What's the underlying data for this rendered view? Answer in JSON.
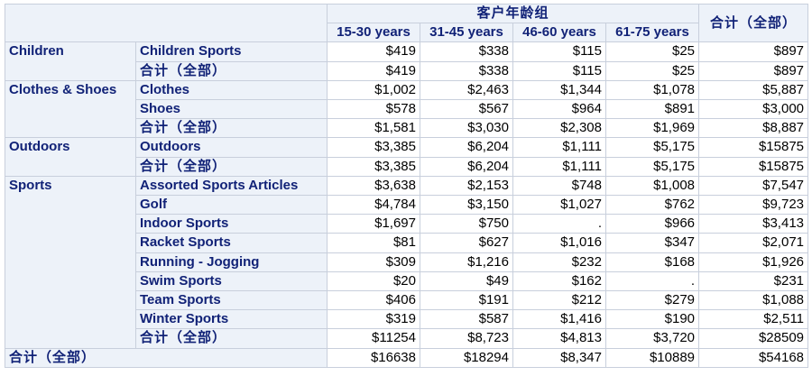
{
  "header": {
    "group_label": "客户年龄组",
    "total_label": "合计（全部）",
    "age_groups": [
      "15-30 years",
      "31-45 years",
      "46-60 years",
      "61-75 years"
    ]
  },
  "groups": [
    {
      "name": "Children",
      "rows": [
        {
          "label": "Children Sports",
          "values": [
            "$419",
            "$338",
            "$115",
            "$25"
          ],
          "total": "$897"
        },
        {
          "label": "合计（全部）",
          "values": [
            "$419",
            "$338",
            "$115",
            "$25"
          ],
          "total": "$897"
        }
      ]
    },
    {
      "name": "Clothes & Shoes",
      "rows": [
        {
          "label": "Clothes",
          "values": [
            "$1,002",
            "$2,463",
            "$1,344",
            "$1,078"
          ],
          "total": "$5,887"
        },
        {
          "label": "Shoes",
          "values": [
            "$578",
            "$567",
            "$964",
            "$891"
          ],
          "total": "$3,000"
        },
        {
          "label": "合计（全部）",
          "values": [
            "$1,581",
            "$3,030",
            "$2,308",
            "$1,969"
          ],
          "total": "$8,887"
        }
      ]
    },
    {
      "name": "Outdoors",
      "rows": [
        {
          "label": "Outdoors",
          "values": [
            "$3,385",
            "$6,204",
            "$1,111",
            "$5,175"
          ],
          "total": "$15875"
        },
        {
          "label": "合计（全部）",
          "values": [
            "$3,385",
            "$6,204",
            "$1,111",
            "$5,175"
          ],
          "total": "$15875"
        }
      ]
    },
    {
      "name": "Sports",
      "rows": [
        {
          "label": "Assorted Sports Articles",
          "values": [
            "$3,638",
            "$2,153",
            "$748",
            "$1,008"
          ],
          "total": "$7,547"
        },
        {
          "label": "Golf",
          "values": [
            "$4,784",
            "$3,150",
            "$1,027",
            "$762"
          ],
          "total": "$9,723"
        },
        {
          "label": "Indoor Sports",
          "values": [
            "$1,697",
            "$750",
            ".",
            "$966"
          ],
          "total": "$3,413"
        },
        {
          "label": "Racket Sports",
          "values": [
            "$81",
            "$627",
            "$1,016",
            "$347"
          ],
          "total": "$2,071"
        },
        {
          "label": "Running - Jogging",
          "values": [
            "$309",
            "$1,216",
            "$232",
            "$168"
          ],
          "total": "$1,926"
        },
        {
          "label": "Swim Sports",
          "values": [
            "$20",
            "$49",
            "$162",
            "."
          ],
          "total": "$231"
        },
        {
          "label": "Team Sports",
          "values": [
            "$406",
            "$191",
            "$212",
            "$279"
          ],
          "total": "$1,088"
        },
        {
          "label": "Winter Sports",
          "values": [
            "$319",
            "$587",
            "$1,416",
            "$190"
          ],
          "total": "$2,511"
        },
        {
          "label": "合计（全部）",
          "values": [
            "$11254",
            "$8,723",
            "$4,813",
            "$3,720"
          ],
          "total": "$28509"
        }
      ]
    }
  ],
  "grand_total": {
    "label": "合计（全部）",
    "values": [
      "$16638",
      "$18294",
      "$8,347",
      "$10889"
    ],
    "total": "$54168"
  },
  "colors": {
    "header_bg": "#edf2f9",
    "header_text": "#112277",
    "border": "#c8cfdc"
  }
}
